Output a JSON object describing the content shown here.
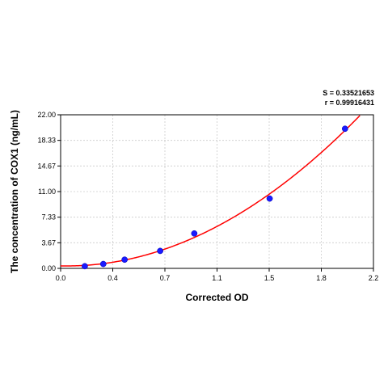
{
  "chart_data": {
    "type": "scatter",
    "xlabel": "Corrected OD",
    "ylabel": "The concentration of COX1 (ng/mL)",
    "xlim": [
      0.0,
      2.2
    ],
    "ylim": [
      0.0,
      22.0
    ],
    "x_ticks": [
      "0.0",
      "0.4",
      "0.7",
      "1.1",
      "1.5",
      "1.8",
      "2.2"
    ],
    "y_ticks": [
      "0.00",
      "3.67",
      "7.33",
      "11.00",
      "14.67",
      "18.33",
      "22.00"
    ],
    "grid": true,
    "stats": {
      "s": "S = 0.33521653",
      "r": "r = 0.99916431"
    },
    "point_color": "#1a1aff",
    "curve_color": "#ff0000",
    "series": [
      {
        "points": [
          {
            "x": 0.17,
            "y": 0.31
          },
          {
            "x": 0.3,
            "y": 0.63
          },
          {
            "x": 0.45,
            "y": 1.25
          },
          {
            "x": 0.7,
            "y": 2.5
          },
          {
            "x": 0.94,
            "y": 5.0
          },
          {
            "x": 1.47,
            "y": 10.0
          },
          {
            "x": 2.0,
            "y": 20.0
          }
        ]
      }
    ]
  }
}
